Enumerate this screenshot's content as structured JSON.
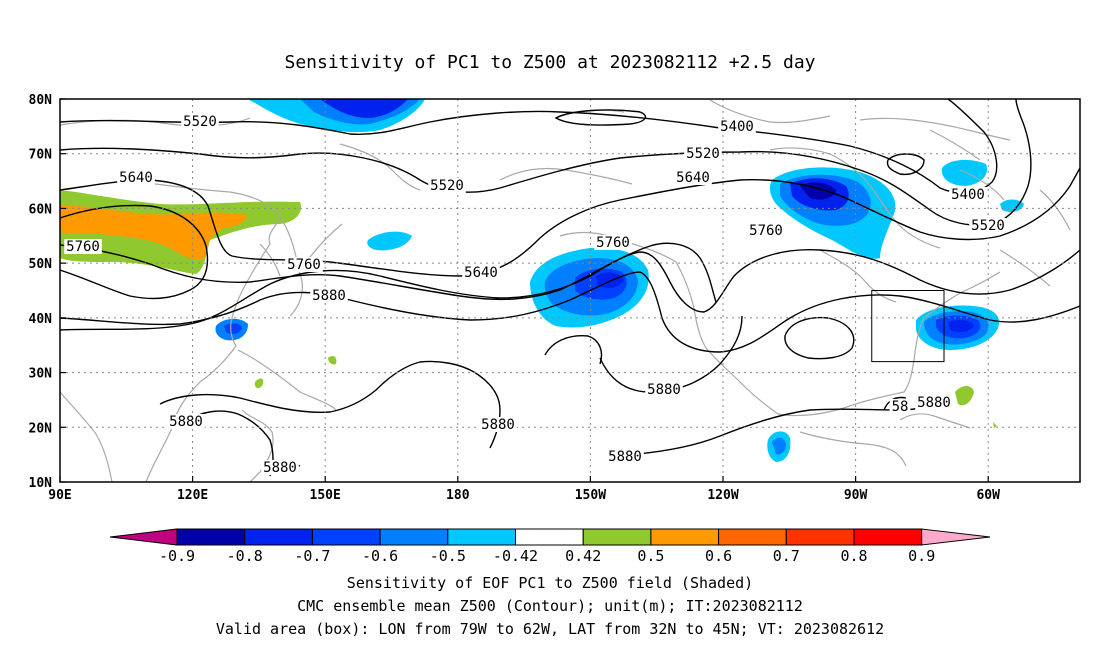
{
  "title": "Sensitivity of PC1 to Z500 at 2023082112 +2.5 day",
  "lat_labels": [
    "80N",
    "70N",
    "60N",
    "50N",
    "40N",
    "30N",
    "20N",
    "10N"
  ],
  "lon_labels": [
    "90E",
    "120E",
    "150E",
    "180",
    "150W",
    "120W",
    "90W",
    "60W"
  ],
  "contour_labels": [
    {
      "text": "5400"
    },
    {
      "text": "5400"
    },
    {
      "text": "5520"
    },
    {
      "text": "5520"
    },
    {
      "text": "5520"
    },
    {
      "text": "5520"
    },
    {
      "text": "5640"
    },
    {
      "text": "5640"
    },
    {
      "text": "5640"
    },
    {
      "text": "5760"
    },
    {
      "text": "5760"
    },
    {
      "text": "5760"
    },
    {
      "text": "5760"
    },
    {
      "text": "5880"
    },
    {
      "text": "5880"
    },
    {
      "text": "5880"
    },
    {
      "text": "5880"
    },
    {
      "text": "5880"
    },
    {
      "text": "5880"
    },
    {
      "text": "5880"
    },
    {
      "text": "58"
    }
  ],
  "colorbar": {
    "labels": [
      "-0.9",
      "-0.8",
      "-0.7",
      "-0.6",
      "-0.5",
      "-0.42",
      "0.42",
      "0.5",
      "0.6",
      "0.7",
      "0.8",
      "0.9"
    ],
    "colors": [
      "#c00080",
      "#0000aa",
      "#0022ee",
      "#0040ff",
      "#0080ff",
      "#00c8ff",
      "#ffffff",
      "#90c830",
      "#ff9900",
      "#ff6600",
      "#ff3300",
      "#ff0000",
      "#ffaacc"
    ]
  },
  "captions": [
    "Sensitivity of EOF PC1 to Z500 field (Shaded)",
    "CMC ensemble mean Z500 (Contour); unit(m); IT:2023082112",
    "Valid area (box): LON from 79W to 62W, LAT from 32N to 45N; VT: 2023082612"
  ],
  "valid_box": {
    "lon_min": -79,
    "lon_max": -62,
    "lat_min": 32,
    "lat_max": 45
  }
}
